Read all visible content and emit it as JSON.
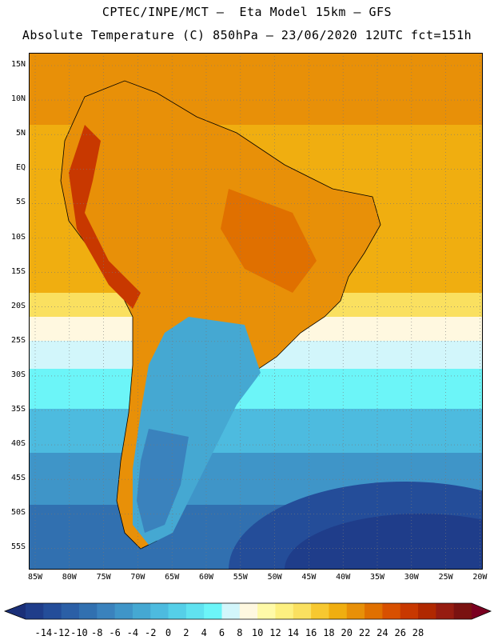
{
  "header": {
    "line1": "CPTEC/INPE/MCT –  Eta Model 15km – GFS",
    "line2": "Absolute Temperature (C) 850hPa – 23/06/2020 12UTC fct=151h"
  },
  "map": {
    "region": "South America",
    "lat_labels": [
      "15N",
      "10N",
      "5N",
      "EQ",
      "5S",
      "10S",
      "15S",
      "20S",
      "25S",
      "30S",
      "35S",
      "40S",
      "45S",
      "50S",
      "55S"
    ],
    "lon_labels": [
      "85W",
      "80W",
      "75W",
      "70W",
      "65W",
      "60W",
      "55W",
      "50W",
      "45W",
      "40W",
      "35W",
      "30W",
      "25W",
      "20W"
    ]
  },
  "colorbar": {
    "labels": [
      "-14",
      "-12",
      "-10",
      "-8",
      "-6",
      "-4",
      "-2",
      "0",
      "2",
      "4",
      "6",
      "8",
      "10",
      "12",
      "14",
      "16",
      "18",
      "20",
      "22",
      "24",
      "26",
      "28"
    ],
    "colors": [
      "#1f3d8a",
      "#244d99",
      "#2b5fa6",
      "#3170b0",
      "#3a82bd",
      "#3f95c8",
      "#45a8d2",
      "#4dbbdf",
      "#55cfe8",
      "#60e2f0",
      "#6cf5f8",
      "#d2f6fb",
      "#fff8e0",
      "#fffaa8",
      "#fdf080",
      "#fae060",
      "#f7c830",
      "#f0ae10",
      "#e89008",
      "#e07000",
      "#d85000",
      "#c83800",
      "#b02800",
      "#961c10",
      "#7a1210"
    ],
    "under_color": "#1a2f78",
    "over_color": "#7a0020"
  }
}
